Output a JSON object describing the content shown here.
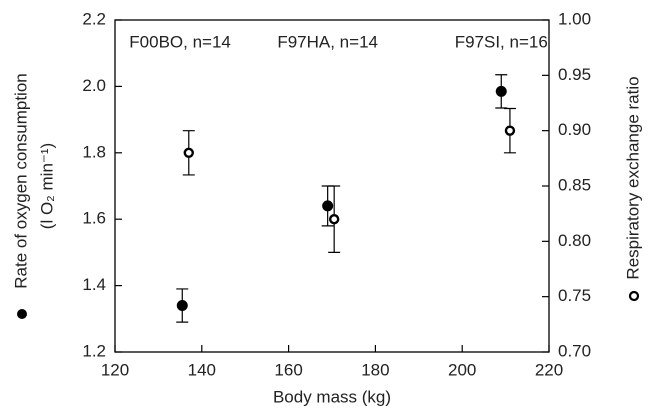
{
  "chart_data": {
    "type": "scatter",
    "xlabel": "Body mass (kg)",
    "ylabel": [
      "Rate of oxygen consumption",
      "(l O₂ min⁻¹)"
    ],
    "y2label": "Respiratory exchange ratio",
    "annotations": [
      {
        "text": "F00BO, n=14",
        "x": 135,
        "y": 2.13
      },
      {
        "text": "F97HA, n=14",
        "x": 169,
        "y": 2.13
      },
      {
        "text": "F97SI, n=16",
        "x": 209,
        "y": 2.13
      }
    ],
    "xlim": [
      120,
      220
    ],
    "xticks": [
      120,
      140,
      160,
      180,
      200,
      220
    ],
    "ylim": [
      1.2,
      2.2
    ],
    "yticks": [
      1.2,
      1.4,
      1.6,
      1.8,
      {
        "value": 2,
        "label": "2.0"
      },
      2.2
    ],
    "y2lim": [
      0.7,
      1
    ],
    "y2ticks": [
      {
        "value": 0.7,
        "label": "0.70"
      },
      0.75,
      {
        "value": 0.8,
        "label": "0.80"
      },
      0.85,
      {
        "value": 0.9,
        "label": "0.90"
      },
      0.95,
      {
        "value": 1,
        "label": "1.00"
      }
    ],
    "series": [
      {
        "color": "#000000",
        "marker": "filled",
        "x": [
          135.5,
          169,
          209
        ],
        "values": [
          1.34,
          1.64,
          1.985
        ],
        "errors": [
          0.05,
          0.06,
          0.05
        ]
      },
      {
        "color": "#000000",
        "marker": "open",
        "axis": "y2",
        "x": [
          137,
          170.5,
          211
        ],
        "values": [
          0.88,
          0.82,
          0.9
        ],
        "errors": [
          0.02,
          0.03,
          0.02
        ]
      }
    ]
  }
}
